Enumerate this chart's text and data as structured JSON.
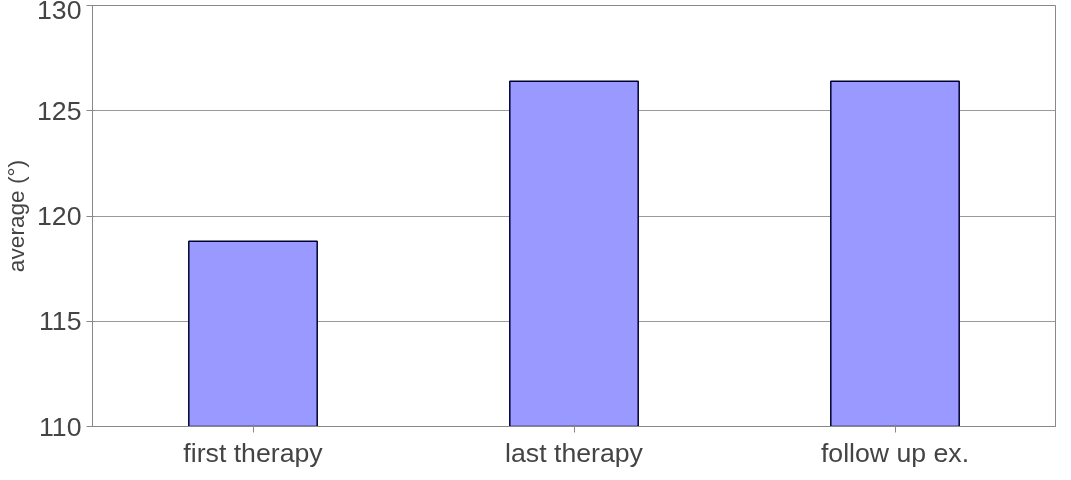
{
  "chart_data": {
    "type": "bar",
    "ylabel": "average (°)",
    "categories": [
      "first therapy",
      "last therapy",
      "follow up ex."
    ],
    "values": [
      118.8,
      126.4,
      126.4
    ],
    "color": "#9999ff",
    "ylim": [
      110,
      130
    ],
    "yticks": [
      110,
      115,
      120,
      125,
      130
    ],
    "grid": "y"
  }
}
